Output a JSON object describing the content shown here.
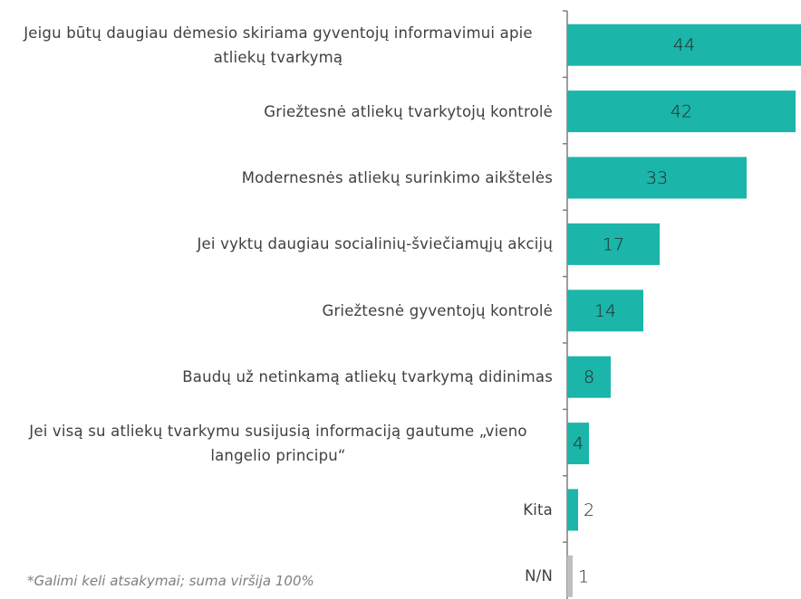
{
  "chart_data": {
    "type": "barh",
    "categories": [
      "Jeigu būtų daugiau dėmesio skiriama gyventojų informavimui apie atliekų tvarkymą",
      "Griežtesnė atliekų tvarkytojų kontrolė",
      "Modernesnės atliekų surinkimo aikštelės",
      "Jei vyktų daugiau socialinių-šviečiamųjų akcijų",
      "Griežtesnė gyventojų kontrolė",
      "Baudų už netinkamą atliekų tvarkymą didinimas",
      "Jei visą su atliekų tvarkymu susijusią informaciją gautume „vieno langelio principu“",
      "Kita",
      "N/N"
    ],
    "values": [
      44,
      42,
      33,
      17,
      14,
      8,
      4,
      2,
      1
    ],
    "colors": [
      "#1bb5a9",
      "#1bb5a9",
      "#1bb5a9",
      "#1bb5a9",
      "#1bb5a9",
      "#1bb5a9",
      "#1bb5a9",
      "#1bb5a9",
      "#bfbfbf"
    ],
    "xlim": [
      0,
      43
    ],
    "footnote": "*Galimi keli atsakymai; suma viršija 100%"
  }
}
